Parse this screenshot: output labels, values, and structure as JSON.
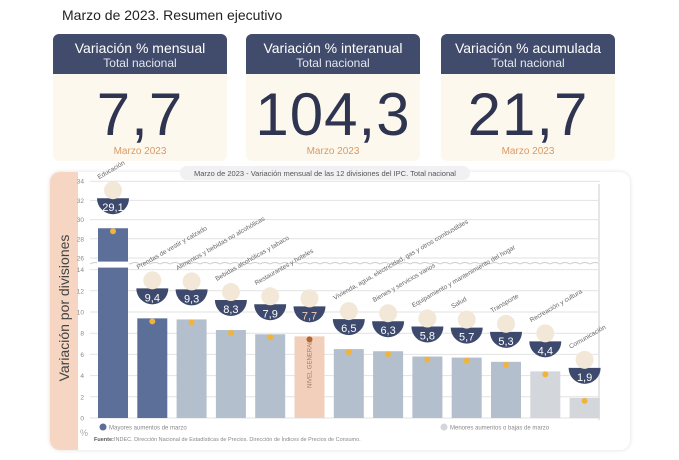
{
  "title": "Marzo de 2023. Resumen ejecutivo",
  "cards": [
    {
      "title": "Variación % mensual",
      "subtitle": "Total nacional",
      "value": "7,7",
      "period": "Marzo 2023"
    },
    {
      "title": "Variación % interanual",
      "subtitle": "Total nacional",
      "value": "104,3",
      "period": "Marzo 2023"
    },
    {
      "title": "Variación % acumulada",
      "subtitle": "Total nacional",
      "value": "21,7",
      "period": "Marzo 2023"
    }
  ],
  "chart_data": {
    "type": "bar",
    "title": "Marzo de 2023 - Variación mensual de las 12 divisiones del IPC. Total nacional",
    "ylabel": "Variación por divisiones",
    "yunit": "%",
    "ylim": [
      0,
      34
    ],
    "axis_break": [
      14,
      26
    ],
    "yticks": [
      0,
      2,
      4,
      6,
      8,
      10,
      12,
      14,
      26,
      28,
      30,
      32,
      34
    ],
    "categories": [
      "Educación",
      "Prendas de vestir y calzado",
      "Alimentos y bebidas no alcohólicas",
      "Bebidas alcohólicas y tabaco",
      "Restaurantes y hoteles",
      "NIVEL GENERAL",
      "Vivienda, agua, electricidad, gas y otros combustibles",
      "Bienes y servicios varios",
      "Equipamiento y mantenimiento del hogar",
      "Salud",
      "Transporte",
      "Recreación y cultura",
      "Comunicación"
    ],
    "values": [
      29.1,
      9.4,
      9.3,
      8.3,
      7.9,
      7.7,
      6.5,
      6.3,
      5.8,
      5.7,
      5.3,
      4.4,
      1.9
    ],
    "value_labels": [
      "29,1",
      "9,4",
      "9,3",
      "8,3",
      "7,9",
      "7,7",
      "6,5",
      "6,3",
      "5,8",
      "5,7",
      "5,3",
      "4,4",
      "1,9"
    ],
    "groups": [
      "mayores",
      "mayores",
      "medio",
      "medio",
      "medio",
      "general",
      "medio",
      "medio",
      "medio",
      "medio",
      "medio",
      "menores",
      "menores"
    ],
    "colors": {
      "mayores": "#5b6f98",
      "medio": "#b4bfce",
      "general": "#f1cfba",
      "menores": "#d3d6db",
      "badge": "#3d4a6e",
      "dot": "#f0b43c"
    },
    "legend": {
      "mayores": "Mayores aumentos de marzo",
      "menores": "Menores aumentos o bajas de marzo"
    },
    "source_label": "Fuente:",
    "source": "INDEC. Dirección Nacional de Estadísticas de Precios. Dirección de Índices de Precios de Consumo."
  }
}
